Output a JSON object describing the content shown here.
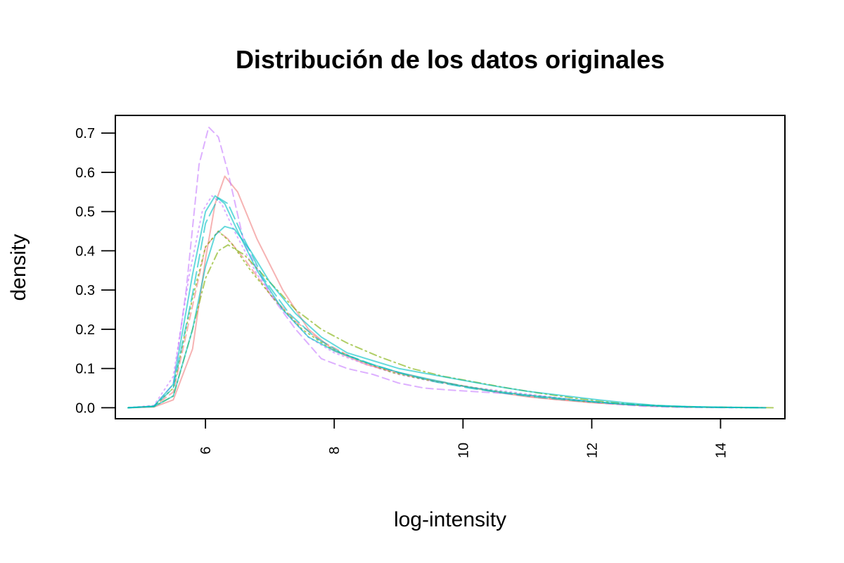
{
  "chart_data": {
    "type": "line",
    "title": "Distribución de los datos originales",
    "xlabel": "log-intensity",
    "ylabel": "density",
    "xlim": [
      4.6,
      15.0
    ],
    "ylim": [
      -0.028,
      0.745
    ],
    "x_ticks": [
      6,
      8,
      10,
      12,
      14
    ],
    "x_tick_labels": [
      "6",
      "8",
      "10",
      "12",
      "14"
    ],
    "y_ticks": [
      0.0,
      0.1,
      0.2,
      0.3,
      0.4,
      0.5,
      0.6,
      0.7
    ],
    "y_tick_labels": [
      "0.0",
      "0.1",
      "0.2",
      "0.3",
      "0.4",
      "0.5",
      "0.6",
      "0.7"
    ],
    "grid": false,
    "series": [
      {
        "color": "#F08080",
        "dash": "solid",
        "points": [
          [
            4.8,
            0.0
          ],
          [
            5.2,
            0.002
          ],
          [
            5.5,
            0.02
          ],
          [
            5.8,
            0.15
          ],
          [
            6.0,
            0.38
          ],
          [
            6.15,
            0.52
          ],
          [
            6.3,
            0.59
          ],
          [
            6.5,
            0.55
          ],
          [
            6.8,
            0.43
          ],
          [
            7.2,
            0.3
          ],
          [
            7.6,
            0.2
          ],
          [
            8.0,
            0.145
          ],
          [
            8.5,
            0.11
          ],
          [
            9.0,
            0.09
          ],
          [
            9.5,
            0.07
          ],
          [
            10.0,
            0.055
          ],
          [
            10.5,
            0.04
          ],
          [
            11.0,
            0.028
          ],
          [
            11.5,
            0.02
          ],
          [
            12.0,
            0.013
          ],
          [
            12.5,
            0.008
          ],
          [
            13.0,
            0.004
          ],
          [
            13.5,
            0.002
          ],
          [
            14.0,
            0.001
          ],
          [
            14.7,
            0.0
          ]
        ]
      },
      {
        "color": "#F08080",
        "dash": "dashed",
        "points": [
          [
            4.8,
            0.0
          ],
          [
            5.2,
            0.004
          ],
          [
            5.5,
            0.04
          ],
          [
            5.8,
            0.26
          ],
          [
            6.0,
            0.41
          ],
          [
            6.2,
            0.45
          ],
          [
            6.35,
            0.43
          ],
          [
            6.6,
            0.38
          ],
          [
            7.0,
            0.29
          ],
          [
            7.4,
            0.22
          ],
          [
            7.8,
            0.17
          ],
          [
            8.2,
            0.135
          ],
          [
            8.7,
            0.1
          ],
          [
            9.2,
            0.08
          ],
          [
            9.7,
            0.065
          ],
          [
            10.2,
            0.05
          ],
          [
            10.7,
            0.036
          ],
          [
            11.2,
            0.025
          ],
          [
            11.7,
            0.018
          ],
          [
            12.2,
            0.011
          ],
          [
            12.7,
            0.006
          ],
          [
            13.2,
            0.003
          ],
          [
            13.7,
            0.0015
          ],
          [
            14.7,
            0.0
          ]
        ]
      },
      {
        "color": "#C77CFF",
        "dash": "dashed",
        "points": [
          [
            4.8,
            0.0
          ],
          [
            5.2,
            0.004
          ],
          [
            5.5,
            0.06
          ],
          [
            5.7,
            0.3
          ],
          [
            5.9,
            0.62
          ],
          [
            6.05,
            0.715
          ],
          [
            6.2,
            0.69
          ],
          [
            6.35,
            0.6
          ],
          [
            6.6,
            0.42
          ],
          [
            7.0,
            0.29
          ],
          [
            7.4,
            0.2
          ],
          [
            7.8,
            0.125
          ],
          [
            8.2,
            0.1
          ],
          [
            8.6,
            0.085
          ],
          [
            9.0,
            0.063
          ],
          [
            9.4,
            0.05
          ],
          [
            9.8,
            0.045
          ],
          [
            10.3,
            0.04
          ],
          [
            10.8,
            0.035
          ],
          [
            11.3,
            0.028
          ],
          [
            11.8,
            0.018
          ],
          [
            12.3,
            0.01
          ],
          [
            12.8,
            0.004
          ],
          [
            13.3,
            0.0015
          ],
          [
            14.2,
            0.0
          ]
        ]
      },
      {
        "color": "#C77CFF",
        "dash": "dotted",
        "points": [
          [
            4.8,
            0.0
          ],
          [
            5.2,
            0.006
          ],
          [
            5.5,
            0.08
          ],
          [
            5.75,
            0.34
          ],
          [
            5.95,
            0.5
          ],
          [
            6.1,
            0.54
          ],
          [
            6.25,
            0.52
          ],
          [
            6.45,
            0.45
          ],
          [
            6.8,
            0.34
          ],
          [
            7.2,
            0.25
          ],
          [
            7.6,
            0.18
          ],
          [
            8.0,
            0.14
          ],
          [
            8.5,
            0.11
          ],
          [
            9.0,
            0.085
          ],
          [
            9.5,
            0.068
          ],
          [
            10.0,
            0.055
          ],
          [
            10.5,
            0.045
          ],
          [
            11.0,
            0.035
          ],
          [
            11.5,
            0.025
          ],
          [
            12.0,
            0.016
          ],
          [
            12.5,
            0.009
          ],
          [
            13.0,
            0.004
          ],
          [
            13.5,
            0.002
          ],
          [
            14.4,
            0.0
          ]
        ]
      },
      {
        "color": "#7CAE00",
        "dash": "dotdash",
        "points": [
          [
            4.8,
            0.0
          ],
          [
            5.2,
            0.003
          ],
          [
            5.5,
            0.03
          ],
          [
            5.8,
            0.2
          ],
          [
            6.0,
            0.33
          ],
          [
            6.2,
            0.4
          ],
          [
            6.35,
            0.415
          ],
          [
            6.6,
            0.39
          ],
          [
            7.0,
            0.32
          ],
          [
            7.4,
            0.25
          ],
          [
            7.8,
            0.2
          ],
          [
            8.2,
            0.165
          ],
          [
            8.7,
            0.13
          ],
          [
            9.2,
            0.1
          ],
          [
            9.7,
            0.08
          ],
          [
            10.2,
            0.065
          ],
          [
            10.7,
            0.05
          ],
          [
            11.2,
            0.037
          ],
          [
            11.7,
            0.025
          ],
          [
            12.2,
            0.015
          ],
          [
            12.7,
            0.008
          ],
          [
            13.2,
            0.004
          ],
          [
            13.7,
            0.002
          ],
          [
            14.3,
            0.0008
          ],
          [
            14.85,
            0.0
          ]
        ]
      },
      {
        "color": "#7CAE00",
        "dash": "dotted",
        "points": [
          [
            4.8,
            0.0
          ],
          [
            5.2,
            0.004
          ],
          [
            5.5,
            0.05
          ],
          [
            5.8,
            0.28
          ],
          [
            6.0,
            0.41
          ],
          [
            6.2,
            0.45
          ],
          [
            6.4,
            0.42
          ],
          [
            6.7,
            0.35
          ],
          [
            7.1,
            0.27
          ],
          [
            7.5,
            0.2
          ],
          [
            7.9,
            0.155
          ],
          [
            8.4,
            0.12
          ],
          [
            8.9,
            0.09
          ],
          [
            9.4,
            0.072
          ],
          [
            9.9,
            0.058
          ],
          [
            10.4,
            0.045
          ],
          [
            10.9,
            0.034
          ],
          [
            11.4,
            0.025
          ],
          [
            11.9,
            0.016
          ],
          [
            12.4,
            0.01
          ],
          [
            12.9,
            0.005
          ],
          [
            13.4,
            0.002
          ],
          [
            14.5,
            0.0
          ]
        ]
      },
      {
        "color": "#00BFC4",
        "dash": "solid",
        "points": [
          [
            4.8,
            0.0
          ],
          [
            5.2,
            0.004
          ],
          [
            5.5,
            0.06
          ],
          [
            5.8,
            0.34
          ],
          [
            6.0,
            0.5
          ],
          [
            6.15,
            0.54
          ],
          [
            6.3,
            0.52
          ],
          [
            6.5,
            0.45
          ],
          [
            6.8,
            0.35
          ],
          [
            7.2,
            0.25
          ],
          [
            7.6,
            0.18
          ],
          [
            8.0,
            0.145
          ],
          [
            8.5,
            0.115
          ],
          [
            9.0,
            0.09
          ],
          [
            9.5,
            0.072
          ],
          [
            10.0,
            0.055
          ],
          [
            10.5,
            0.042
          ],
          [
            11.0,
            0.032
          ],
          [
            11.5,
            0.024
          ],
          [
            12.0,
            0.016
          ],
          [
            12.5,
            0.009
          ],
          [
            13.0,
            0.005
          ],
          [
            13.5,
            0.002
          ],
          [
            14.0,
            0.001
          ],
          [
            14.7,
            0.0
          ]
        ]
      },
      {
        "color": "#00BFC4",
        "dash": "solid",
        "points": [
          [
            4.8,
            0.0
          ],
          [
            5.2,
            0.003
          ],
          [
            5.5,
            0.03
          ],
          [
            5.8,
            0.2
          ],
          [
            6.0,
            0.36
          ],
          [
            6.15,
            0.44
          ],
          [
            6.3,
            0.462
          ],
          [
            6.45,
            0.455
          ],
          [
            6.7,
            0.4
          ],
          [
            7.0,
            0.32
          ],
          [
            7.4,
            0.24
          ],
          [
            7.8,
            0.18
          ],
          [
            8.2,
            0.14
          ],
          [
            8.6,
            0.12
          ],
          [
            9.0,
            0.1
          ],
          [
            9.5,
            0.085
          ],
          [
            10.0,
            0.07
          ],
          [
            10.5,
            0.055
          ],
          [
            11.0,
            0.042
          ],
          [
            11.5,
            0.032
          ],
          [
            12.0,
            0.022
          ],
          [
            12.5,
            0.013
          ],
          [
            13.0,
            0.006
          ],
          [
            13.5,
            0.003
          ],
          [
            14.0,
            0.001
          ],
          [
            14.7,
            0.0
          ]
        ]
      },
      {
        "color": "#00BFC4",
        "dash": "longdash",
        "points": [
          [
            4.8,
            0.0
          ],
          [
            5.2,
            0.004
          ],
          [
            5.5,
            0.05
          ],
          [
            5.8,
            0.29
          ],
          [
            6.0,
            0.47
          ],
          [
            6.2,
            0.535
          ],
          [
            6.35,
            0.52
          ],
          [
            6.6,
            0.43
          ],
          [
            6.9,
            0.33
          ],
          [
            7.3,
            0.24
          ],
          [
            7.7,
            0.18
          ],
          [
            8.1,
            0.14
          ],
          [
            8.6,
            0.11
          ],
          [
            9.1,
            0.085
          ],
          [
            9.6,
            0.065
          ],
          [
            10.1,
            0.05
          ],
          [
            10.6,
            0.038
          ],
          [
            11.1,
            0.028
          ],
          [
            11.6,
            0.02
          ],
          [
            12.1,
            0.014
          ],
          [
            12.6,
            0.008
          ],
          [
            13.1,
            0.004
          ],
          [
            13.6,
            0.002
          ],
          [
            14.6,
            0.0
          ]
        ]
      }
    ]
  }
}
